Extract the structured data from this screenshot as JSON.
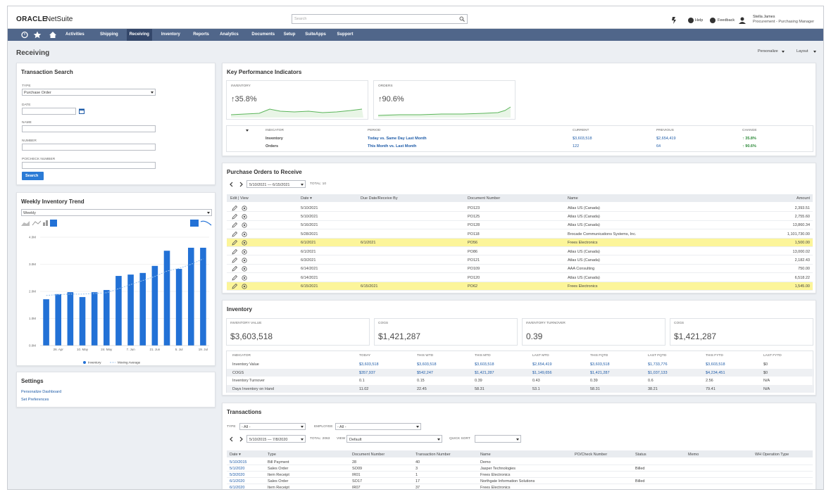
{
  "header": {
    "logo_brand": "ORACLE",
    "logo_product": "NetSuite",
    "search_placeholder": "Search",
    "help": "Help",
    "feedback": "Feedback",
    "user_name": "Stella James",
    "user_role": "Procurement - Purchasing Manager"
  },
  "nav": {
    "items": [
      "Activities",
      "Shipping",
      "Receiving",
      "Inventory",
      "Reports",
      "Analytics",
      "Documents",
      "Setup",
      "SuiteApps",
      "Support"
    ],
    "active": 2
  },
  "page": {
    "title": "Receiving",
    "personalize": "Personalize",
    "layout": "Layout"
  },
  "transaction_search": {
    "title": "Transaction Search",
    "fields": [
      {
        "label": "TYPE",
        "value": "Purchase Order"
      },
      {
        "label": "DATE"
      },
      {
        "label": "NAME"
      },
      {
        "label": "NUMBER"
      },
      {
        "label": "PO/CHECK NUMBER"
      }
    ],
    "button": "Search"
  },
  "inventory_trend": {
    "title": "Weekly Inventory Trend",
    "period": "Weekly",
    "chart_data": {
      "type": "bar",
      "categories": [
        null,
        "26. Apr",
        null,
        "10. May",
        null,
        "24. May",
        null,
        "7. Jun",
        null,
        "21. Jun",
        null,
        "5. Jul",
        null,
        "19. Jul"
      ],
      "series": [
        {
          "name": "Inventory",
          "color": "#2271d6",
          "values": [
            1710000,
            1900000,
            1970000,
            1790000,
            1970000,
            2050000,
            2570000,
            2620000,
            2680000,
            2940000,
            3500000,
            2830000,
            3610000,
            3610000
          ]
        },
        {
          "name": "Moving Average",
          "color": "#9cc3ec",
          "values": [
            1850000,
            1880000,
            1900000,
            1900000,
            1920000,
            1950000,
            2100000,
            2250000,
            2400000,
            2550000,
            2750000,
            2850000,
            3000000,
            3200000
          ]
        }
      ],
      "ylim": [
        0,
        4000000
      ],
      "yticks": [
        {
          "value": 0,
          "label": "0.0M"
        },
        {
          "value": 1000000,
          "label": "1.0M"
        },
        {
          "value": 2000000,
          "label": "2.0M"
        },
        {
          "value": 3000000,
          "label": "3.0M"
        },
        {
          "value": 4000000,
          "label": "4.0M"
        }
      ],
      "grid": true
    }
  },
  "settings": {
    "title": "Settings",
    "links": [
      "Personalize Dashboard",
      "Set Preferences"
    ]
  },
  "kpi": {
    "title": "Key Performance Indicators",
    "cards": [
      {
        "label": "INVENTORY",
        "value": "↑35.8%"
      },
      {
        "label": "ORDERS",
        "value": "↑90.6%"
      }
    ],
    "table": {
      "headers": [
        "INDICATOR",
        "PERIOD",
        "CURRENT",
        "PREVIOUS",
        "CHANGE"
      ],
      "rows": [
        [
          "Inventory",
          "Today vs. Same Day Last Month",
          "$3,603,518",
          "$2,654,419",
          "↑ 35.8%"
        ],
        [
          "Orders",
          "This Month vs. Last Month",
          "122",
          "64",
          "↑ 90.6%"
        ]
      ]
    }
  },
  "purchase_orders": {
    "title": "Purchase Orders to Receive",
    "date_range": "5/10/2021 — 6/15/2021",
    "total": "TOTAL: 10",
    "headers": [
      "Edit | View",
      "Date ▾",
      "Due Date/Receive By",
      "Document Number",
      "Name",
      "Amount"
    ],
    "rows": [
      [
        "5/10/2021",
        null,
        "PO123",
        "Atlas US (Canada)",
        "2,393.51"
      ],
      [
        "5/10/2021",
        null,
        "PO125",
        "Atlas US (Canada)",
        "2,755.60"
      ],
      [
        "5/16/2021",
        null,
        "PO128",
        "Atlas US (Canada)",
        "13,860.34"
      ],
      [
        "5/28/2021",
        null,
        "PO118",
        "Brocade Communications Systems, Inc.",
        "1,101,730.00"
      ],
      [
        "6/1/2021",
        "6/1/2021",
        "PO56",
        "Frees Electronics",
        "1,500.00"
      ],
      [
        "6/1/2021",
        null,
        "PO86",
        "Atlas US (Canada)",
        "13,000.02"
      ],
      [
        "6/3/2021",
        null,
        "PO121",
        "Atlas US (Canada)",
        "2,182.43"
      ],
      [
        "6/14/2021",
        null,
        "PO109",
        "AAA Consulting",
        "750.00"
      ],
      [
        "6/14/2021",
        null,
        "PO120",
        "Atlas US (Canada)",
        "6,518.22"
      ],
      [
        "6/15/2021",
        "6/15/2021",
        "PO62",
        "Frees Electronics",
        "1,545.00"
      ]
    ],
    "highlighted_rows": [
      4,
      9
    ]
  },
  "inventory": {
    "title": "Inventory",
    "cards": [
      {
        "label": "INVENTORY VALUE",
        "value": "$3,603,518"
      },
      {
        "label": "COGS",
        "value": "$1,421,287"
      },
      {
        "label": "INVENTORY TURNOVER",
        "value": "0.39"
      },
      {
        "label": "COGS",
        "value": "$1,421,287"
      }
    ],
    "table": {
      "headers": [
        "INDICATOR",
        "TODAY",
        "THIS WTD",
        "THIS MTD",
        "LAST MTD",
        "THIS FQTD",
        "LAST FQTD",
        "THIS FYTD",
        "LAST FYTD"
      ],
      "rows": [
        [
          "Inventory Value",
          "$3,603,518",
          "$3,603,518",
          "$3,603,518",
          "$2,654,419",
          "$3,603,518",
          "$1,733,776",
          "$3,603,518",
          "$0"
        ],
        [
          "COGS",
          "$357,937",
          "$542,247",
          "$1,421,287",
          "$1,149,656",
          "$1,421,287",
          "$1,037,133",
          "$4,234,451",
          "$0"
        ],
        [
          "Inventory Turnover",
          "0.1",
          "0.15",
          "0.39",
          "0.43",
          "0.39",
          "0.6",
          "2.56",
          "N/A"
        ],
        [
          "Days Inventory on Hand",
          "11.02",
          "22.45",
          "58.31",
          "53.1",
          "58.31",
          "38.21",
          "79.41",
          "N/A"
        ]
      ]
    }
  },
  "transactions": {
    "title": "Transactions",
    "type_label": "TYPE",
    "type_value": "- All -",
    "employee_label": "EMPLOYEE",
    "employee_value": "- All -",
    "date_range": "5/10/2015 — 7/8/2020",
    "total": "TOTAL: 2063",
    "view_label": "VIEW",
    "view_value": "Default",
    "quick_sort_label": "QUICK SORT",
    "headers": [
      "Date ▾",
      "Type",
      "Document Number",
      "Transaction Number",
      "Name",
      "PO/Check Number",
      "Status",
      "Memo",
      "WH Operation Type"
    ],
    "rows": [
      [
        "5/10/2015",
        "Bill Payment",
        "28",
        "40",
        "Demo",
        null,
        null,
        null,
        null
      ],
      [
        "5/1/2020",
        "Sales Order",
        "SO09",
        "3",
        "Jasper Technologies",
        null,
        "Billed",
        null,
        null
      ],
      [
        "5/3/2020",
        "Item Receipt",
        "IR01",
        "1",
        "Frees Electronics",
        null,
        null,
        null,
        null
      ],
      [
        "6/1/2020",
        "Sales Order",
        "SO17",
        "17",
        "Northgate Information Solutions",
        null,
        "Billed",
        null,
        null
      ],
      [
        "6/1/2020",
        "Item Receipt",
        "IR07",
        "37",
        "Frees Electronics",
        null,
        null,
        null,
        null
      ]
    ]
  }
}
